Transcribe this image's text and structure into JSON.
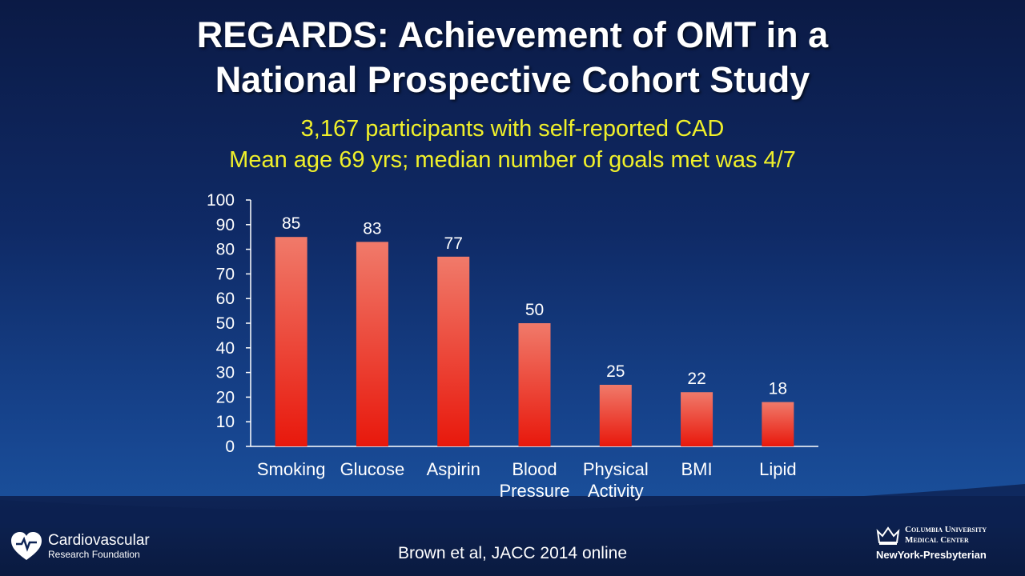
{
  "title": "REGARDS: Achievement of OMT in a National Prospective Cohort Study",
  "title_lines": [
    "REGARDS: Achievement of OMT in a",
    "National Prospective Cohort Study"
  ],
  "subtitle_lines": [
    "3,167 participants with self-reported CAD",
    "Mean age 69 yrs; median number of goals met was 4/7"
  ],
  "citation": "Brown et al, JACC 2014 online",
  "logos": {
    "left": {
      "line1": "Cardiovascular",
      "line2": "Research Foundation",
      "icon": "heart-icon"
    },
    "right": {
      "line1": "Columbia University",
      "line2": "Medical Center",
      "line3": "NewYork-Presbyterian",
      "icon": "crown-icon"
    }
  },
  "colors": {
    "bar_top": "#f07a6a",
    "bar_bottom": "#e8180c",
    "title": "#ffffff",
    "subtitle": "#f0f02a"
  },
  "chart_data": {
    "type": "bar",
    "categories": [
      [
        "Smoking"
      ],
      [
        "Glucose"
      ],
      [
        "Aspirin"
      ],
      [
        "Blood",
        "Pressure"
      ],
      [
        "Physical",
        "Activity"
      ],
      [
        "BMI"
      ],
      [
        "Lipid"
      ]
    ],
    "values": [
      85,
      83,
      77,
      50,
      25,
      22,
      18
    ],
    "ylim": [
      0,
      100
    ],
    "yticks": [
      0,
      10,
      20,
      30,
      40,
      50,
      60,
      70,
      80,
      90,
      100
    ],
    "grid": false,
    "data_labels": true
  }
}
